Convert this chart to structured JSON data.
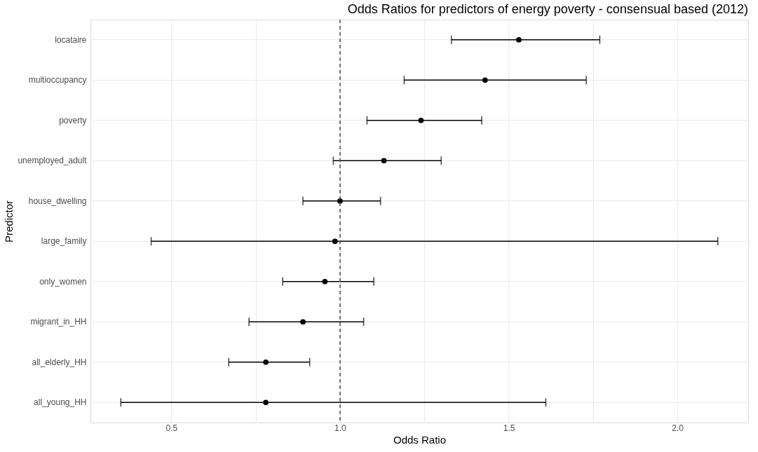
{
  "chart_data": {
    "type": "scatter",
    "title": "Odds Ratios for predictors of energy poverty - consensual based (2012)",
    "xlabel": "Odds Ratio",
    "ylabel": "Predictor",
    "orientation": "horizontal",
    "categories": [
      "locataire",
      "multioccupancy",
      "poverty",
      "unemployed_adult",
      "house_dwelling",
      "large_family",
      "only_women",
      "migrant_in_HH",
      "all_elderly_HH",
      "all_young_HH"
    ],
    "series": [
      {
        "color": "#000000",
        "values": [
          1.53,
          1.43,
          1.24,
          1.13,
          1.0,
          0.985,
          0.955,
          0.89,
          0.78,
          0.78
        ],
        "errors": [
          [
            1.33,
            1.77
          ],
          [
            1.19,
            1.73
          ],
          [
            1.08,
            1.42
          ],
          [
            0.98,
            1.3
          ],
          [
            0.89,
            1.12
          ],
          [
            0.44,
            2.12
          ],
          [
            0.83,
            1.1
          ],
          [
            0.73,
            1.07
          ],
          [
            0.67,
            0.91
          ],
          [
            0.35,
            1.61
          ]
        ]
      }
    ],
    "xlim": [
      0.26,
      2.21
    ],
    "xticks": [
      {
        "value": 0.5,
        "label": "0.5"
      },
      {
        "value": 0.75,
        "label": null
      },
      {
        "value": 1,
        "label": "1.0"
      },
      {
        "value": 1.25,
        "label": null
      },
      {
        "value": 1.5,
        "label": "1.5"
      },
      {
        "value": 1.75,
        "label": null
      },
      {
        "value": 2,
        "label": "2.0"
      }
    ],
    "ref_lines": [
      {
        "axis": "x",
        "value": 1.0,
        "label": null,
        "color": "#555555",
        "line_style": "dashed"
      }
    ],
    "grid": true,
    "marker": "circle"
  }
}
